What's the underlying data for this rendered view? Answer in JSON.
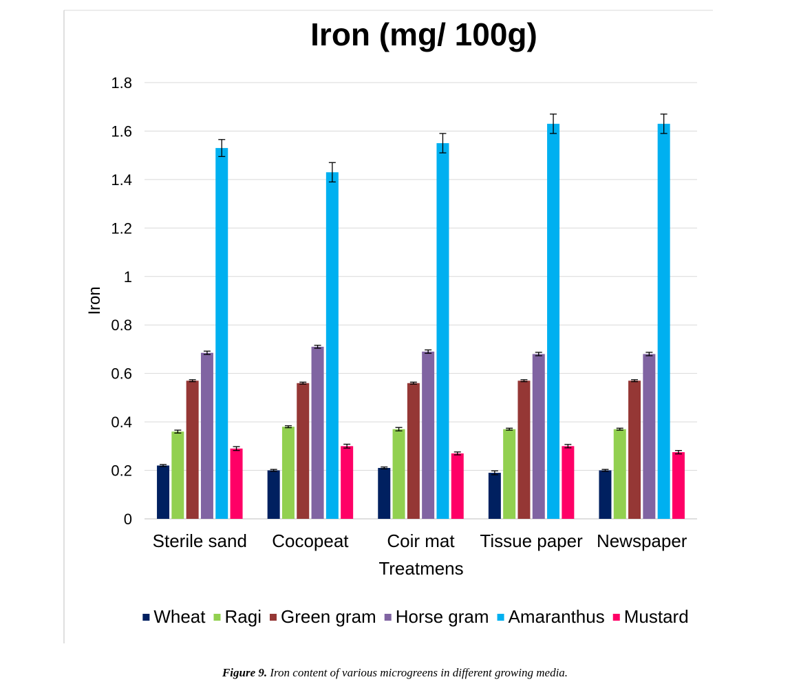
{
  "chart_data": {
    "type": "bar",
    "title": "Iron (mg/ 100g)",
    "xlabel": "Treatmens",
    "ylabel": "Iron",
    "ylim": [
      0,
      1.8
    ],
    "yticks": [
      "0",
      "0.2",
      "0.4",
      "0.6",
      "0.8",
      "1",
      "1.2",
      "1.4",
      "1.6",
      "1.8"
    ],
    "ytick_values": [
      0,
      0.2,
      0.4,
      0.6,
      0.8,
      1.0,
      1.2,
      1.4,
      1.6,
      1.8
    ],
    "grid": true,
    "legend_position": "bottom",
    "categories": [
      "Sterile sand",
      "Cocopeat",
      "Coir mat",
      "Tissue paper",
      "Newspaper"
    ],
    "series": [
      {
        "name": "Wheat",
        "color": "#002060",
        "values": [
          0.22,
          0.2,
          0.21,
          0.19,
          0.2
        ],
        "errors": [
          0.004,
          0.004,
          0.004,
          0.008,
          0.004
        ]
      },
      {
        "name": "Ragi",
        "color": "#92D050",
        "values": [
          0.36,
          0.38,
          0.37,
          0.37,
          0.37
        ],
        "errors": [
          0.006,
          0.004,
          0.007,
          0.004,
          0.004
        ]
      },
      {
        "name": "Green gram",
        "color": "#953735",
        "values": [
          0.57,
          0.56,
          0.56,
          0.57,
          0.57
        ],
        "errors": [
          0.004,
          0.004,
          0.004,
          0.004,
          0.004
        ]
      },
      {
        "name": "Horse gram",
        "color": "#8064A2",
        "values": [
          0.685,
          0.71,
          0.69,
          0.68,
          0.68
        ],
        "errors": [
          0.007,
          0.006,
          0.007,
          0.007,
          0.007
        ]
      },
      {
        "name": "Amaranthus",
        "color": "#00B0F0",
        "values": [
          1.53,
          1.43,
          1.55,
          1.63,
          1.63
        ],
        "errors": [
          0.035,
          0.04,
          0.04,
          0.04,
          0.04
        ]
      },
      {
        "name": "Mustard",
        "color": "#FF0066",
        "values": [
          0.29,
          0.3,
          0.27,
          0.3,
          0.275
        ],
        "errors": [
          0.008,
          0.008,
          0.006,
          0.007,
          0.007
        ]
      }
    ]
  },
  "caption": {
    "label": "Figure 9.",
    "text": " Iron content of various microgreens in different growing media."
  }
}
